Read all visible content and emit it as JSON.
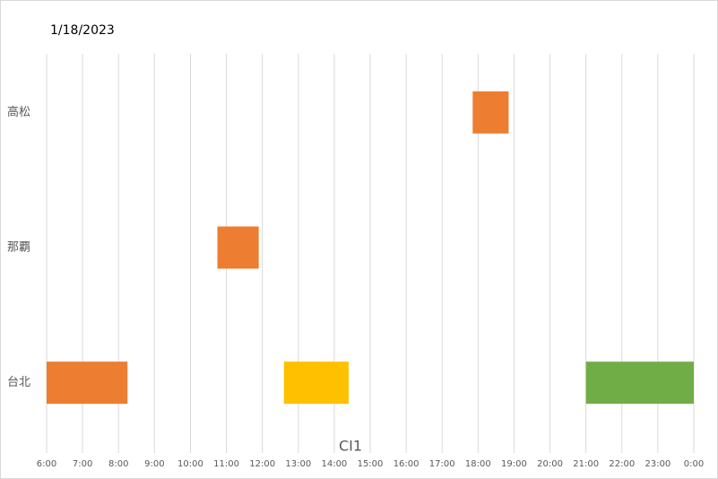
{
  "chart_data": {
    "type": "gantt",
    "title": "1/18/2023",
    "x_label": "CI1",
    "categories": [
      "台北",
      "那覇",
      "高松"
    ],
    "xlim": [
      6,
      24
    ],
    "xticks": [
      {
        "value": 6,
        "label": "6:00"
      },
      {
        "value": 7,
        "label": "7:00"
      },
      {
        "value": 8,
        "label": "8:00"
      },
      {
        "value": 9,
        "label": "9:00"
      },
      {
        "value": 10,
        "label": "10:00"
      },
      {
        "value": 11,
        "label": "11:00"
      },
      {
        "value": 12,
        "label": "12:00"
      },
      {
        "value": 13,
        "label": "13:00"
      },
      {
        "value": 14,
        "label": "14:00"
      },
      {
        "value": 15,
        "label": "15:00"
      },
      {
        "value": 16,
        "label": "16:00"
      },
      {
        "value": 17,
        "label": "17:00"
      },
      {
        "value": 18,
        "label": "18:00"
      },
      {
        "value": 19,
        "label": "19:00"
      },
      {
        "value": 20,
        "label": "20:00"
      },
      {
        "value": 21,
        "label": "21:00"
      },
      {
        "value": 22,
        "label": "22:00"
      },
      {
        "value": 23,
        "label": "23:00"
      },
      {
        "value": 24,
        "label": "0:00"
      }
    ],
    "grid": true,
    "bars": [
      {
        "category": 0,
        "start": 6,
        "end": 8.25,
        "color": "#ed7d31"
      },
      {
        "category": 0,
        "start": 12.6,
        "end": 14.4,
        "color": "#ffc000"
      },
      {
        "category": 0,
        "start": 21,
        "end": 24,
        "color": "#70ad47"
      },
      {
        "category": 1,
        "start": 10.75,
        "end": 11.9,
        "color": "#ed7d31"
      },
      {
        "category": 2,
        "start": 17.85,
        "end": 18.85,
        "color": "#ed7d31"
      }
    ]
  }
}
